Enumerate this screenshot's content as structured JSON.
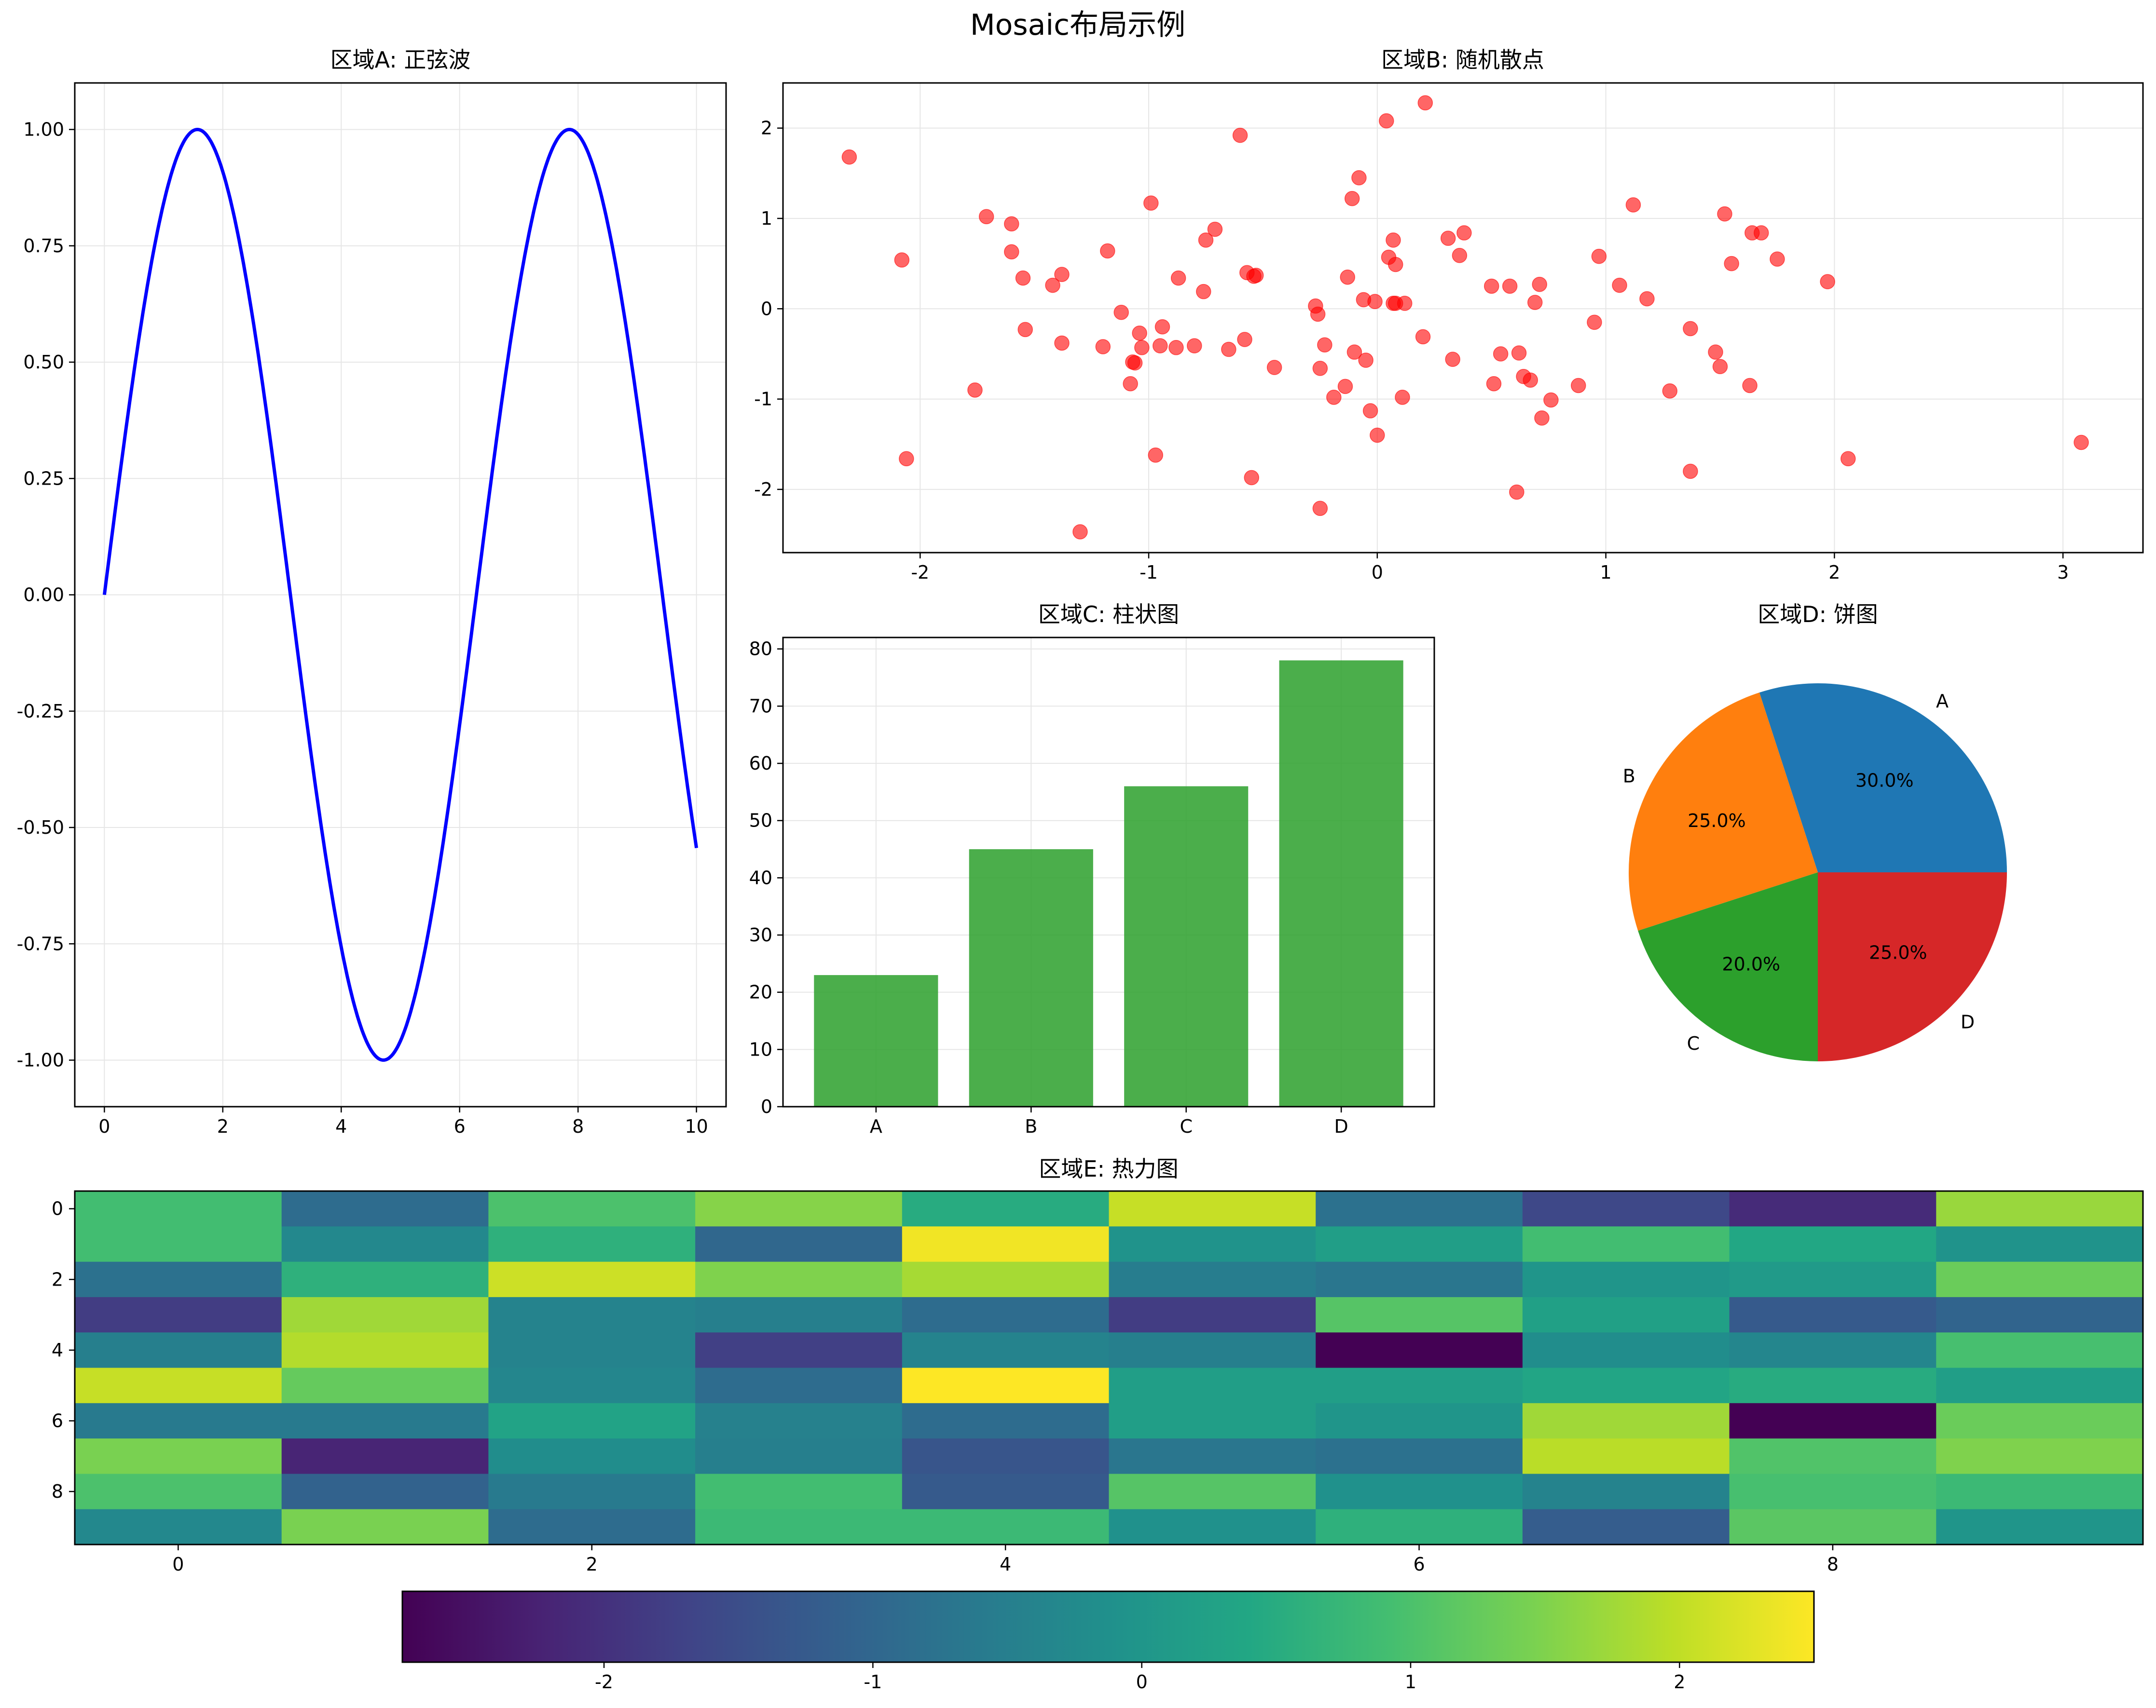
{
  "figure_title": "Mosaic布局示例",
  "colors": {
    "sine_line": "#0000ff",
    "scatter_point": "#ff0000",
    "bar_fill": "#2ca02c",
    "pie": [
      "#1f77b4",
      "#ff7f0e",
      "#2ca02c",
      "#d62728"
    ],
    "grid": "#e6e6e6",
    "axis": "#000000"
  },
  "chart_data": [
    {
      "id": "A",
      "type": "line",
      "title": "区域A: 正弦波",
      "function": "sin(x)",
      "x_range": [
        0,
        10
      ],
      "xlim": [
        -0.5,
        10.5
      ],
      "ylim": [
        -1.1,
        1.1
      ],
      "xticks": [
        0,
        2,
        4,
        6,
        8,
        10
      ],
      "yticks": [
        -1.0,
        -0.75,
        -0.5,
        -0.25,
        0.0,
        0.25,
        0.5,
        0.75,
        1.0
      ],
      "ytick_labels": [
        "-1.00",
        "-0.75",
        "-0.50",
        "-0.25",
        "0.00",
        "0.25",
        "0.50",
        "0.75",
        "1.00"
      ],
      "grid": true
    },
    {
      "id": "B",
      "type": "scatter",
      "title": "区域B: 随机散点",
      "xlim": [
        -2.6,
        3.35
      ],
      "ylim": [
        -2.7,
        2.5
      ],
      "xticks": [
        -2,
        -1,
        0,
        1,
        2,
        3
      ],
      "yticks": [
        -2,
        -1,
        0,
        1,
        2
      ],
      "grid": true,
      "x": [
        -2.31,
        -2.08,
        -2.06,
        -1.76,
        -1.71,
        -1.6,
        -1.6,
        -1.55,
        -1.54,
        -1.42,
        -1.38,
        -1.38,
        -1.3,
        -1.2,
        -1.18,
        -1.12,
        -1.08,
        -1.07,
        -1.06,
        -1.04,
        -1.03,
        -0.99,
        -0.97,
        -0.95,
        -0.94,
        -0.88,
        -0.87,
        -0.8,
        -0.76,
        -0.75,
        -0.71,
        -0.65,
        -0.6,
        -0.58,
        -0.57,
        -0.55,
        -0.54,
        -0.53,
        -0.45,
        -0.27,
        -0.26,
        -0.25,
        -0.25,
        -0.23,
        -0.19,
        -0.14,
        -0.13,
        -0.11,
        -0.1,
        -0.08,
        -0.06,
        -0.05,
        -0.03,
        -0.01,
        0.0,
        0.04,
        0.05,
        0.07,
        0.07,
        0.08,
        0.08,
        0.11,
        0.12,
        0.21,
        0.2,
        0.31,
        0.33,
        0.36,
        0.38,
        0.5,
        0.51,
        0.54,
        0.58,
        0.61,
        0.62,
        0.64,
        0.67,
        0.69,
        0.71,
        0.72,
        0.76,
        0.88,
        0.95,
        0.97,
        1.06,
        1.12,
        1.18,
        1.28,
        1.37,
        1.37,
        1.48,
        1.5,
        1.52,
        1.55,
        1.63,
        1.64,
        1.68,
        1.75,
        1.97,
        2.06,
        3.08
      ],
      "y": [
        1.68,
        0.54,
        -1.66,
        -0.9,
        1.02,
        0.94,
        0.63,
        0.34,
        -0.23,
        0.26,
        0.38,
        -0.38,
        -2.47,
        -0.42,
        0.64,
        -0.04,
        -0.83,
        -0.59,
        -0.6,
        -0.27,
        -0.43,
        1.17,
        -1.62,
        -0.41,
        -0.2,
        -0.43,
        0.34,
        -0.41,
        0.19,
        0.76,
        0.88,
        -0.45,
        1.92,
        -0.34,
        0.4,
        -1.87,
        0.36,
        0.37,
        -0.65,
        0.03,
        -0.06,
        -2.21,
        -0.66,
        -0.4,
        -0.98,
        -0.86,
        0.35,
        1.22,
        -0.48,
        1.45,
        0.1,
        -0.57,
        -1.13,
        0.08,
        -1.4,
        2.08,
        0.57,
        0.76,
        0.06,
        0.49,
        0.06,
        -0.98,
        0.06,
        2.28,
        -0.31,
        0.78,
        -0.56,
        0.59,
        0.84,
        0.25,
        -0.83,
        -0.5,
        0.25,
        -2.03,
        -0.49,
        -0.75,
        -0.79,
        0.07,
        0.27,
        -1.21,
        -1.01,
        -0.85,
        -0.15,
        0.58,
        0.26,
        1.15,
        0.11,
        -0.91,
        -1.8,
        -0.22,
        -0.48,
        -0.64,
        1.05,
        0.5,
        -0.85,
        0.84,
        0.84,
        0.55,
        0.3,
        -1.66,
        -1.48
      ]
    },
    {
      "id": "C",
      "type": "bar",
      "title": "区域C: 柱状图",
      "categories": [
        "A",
        "B",
        "C",
        "D"
      ],
      "values": [
        23,
        45,
        56,
        78
      ],
      "ylim": [
        0,
        82
      ],
      "yticks": [
        0,
        10,
        20,
        30,
        40,
        50,
        60,
        70,
        80
      ],
      "grid": true
    },
    {
      "id": "D",
      "type": "pie",
      "title": "区域D: 饼图",
      "labels": [
        "A",
        "B",
        "C",
        "D"
      ],
      "values": [
        30,
        25,
        20,
        25
      ],
      "pct_labels": [
        "30.0%",
        "25.0%",
        "20.0%",
        "25.0%"
      ]
    },
    {
      "id": "E",
      "type": "heatmap",
      "title": "区域E: 热力图",
      "colormap": "viridis",
      "vmin": -2.75,
      "vmax": 2.5,
      "xticks": [
        0,
        2,
        4,
        6,
        8
      ],
      "yticks": [
        0,
        2,
        4,
        6,
        8
      ],
      "values": [
        [
          0.9,
          -0.9,
          1.0,
          1.55,
          0.5,
          2.05,
          -0.8,
          -1.6,
          -2.1,
          1.7
        ],
        [
          0.9,
          -0.3,
          0.6,
          -1.0,
          2.4,
          -0.05,
          0.2,
          0.9,
          0.4,
          -0.05
        ],
        [
          -0.8,
          0.6,
          2.1,
          1.5,
          1.8,
          -0.55,
          -0.7,
          0.0,
          0.1,
          1.3
        ],
        [
          -1.8,
          1.75,
          -0.4,
          -0.5,
          -0.9,
          -1.8,
          1.1,
          0.25,
          -1.25,
          -1.05
        ],
        [
          -0.5,
          1.9,
          -0.4,
          -1.75,
          -0.4,
          -0.5,
          -2.75,
          -0.2,
          -0.35,
          0.95
        ],
        [
          2.05,
          1.25,
          -0.35,
          -0.9,
          2.5,
          0.2,
          0.2,
          0.35,
          0.5,
          0.2
        ],
        [
          -0.6,
          -0.6,
          0.3,
          -0.45,
          -0.9,
          0.2,
          0.0,
          1.75,
          -2.75,
          1.3
        ],
        [
          1.45,
          -2.2,
          -0.2,
          -0.5,
          -1.35,
          -0.7,
          -0.8,
          1.95,
          1.05,
          1.5
        ],
        [
          1.0,
          -1.1,
          -0.6,
          0.9,
          -1.25,
          1.1,
          -0.1,
          -0.4,
          0.95,
          0.8
        ],
        [
          -0.3,
          1.45,
          -0.9,
          0.8,
          0.8,
          -0.1,
          0.6,
          -1.2,
          1.15,
          0.0
        ]
      ]
    },
    {
      "id": "colorbar",
      "type": "colorbar",
      "colormap": "viridis",
      "vmin": -2.75,
      "vmax": 2.5,
      "ticks": [
        -2,
        -1,
        0,
        1,
        2
      ]
    }
  ]
}
